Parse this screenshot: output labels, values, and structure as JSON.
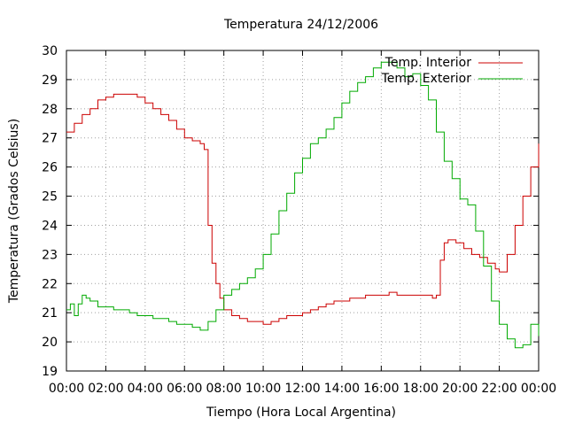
{
  "chart_data": {
    "type": "line",
    "title": "Temperatura 24/12/2006",
    "xlabel": "Tiempo (Hora Local Argentina)",
    "ylabel": "Temperatura (Grados Celsius)",
    "xlim": [
      0,
      24
    ],
    "ylim": [
      19,
      30
    ],
    "x_ticks": [
      "00:00",
      "02:00",
      "04:00",
      "06:00",
      "08:00",
      "10:00",
      "12:00",
      "14:00",
      "16:00",
      "18:00",
      "20:00",
      "22:00",
      "00:00"
    ],
    "y_ticks": [
      "19",
      "20",
      "21",
      "22",
      "23",
      "24",
      "25",
      "26",
      "27",
      "28",
      "29",
      "30"
    ],
    "grid": true,
    "legend_position": "top-right",
    "series": [
      {
        "name": "Temp. Interior",
        "color": "#cc0000",
        "x": [
          0,
          0.4,
          0.8,
          1.2,
          1.6,
          2.0,
          2.4,
          2.8,
          3.2,
          3.6,
          4.0,
          4.4,
          4.8,
          5.2,
          5.6,
          6.0,
          6.4,
          6.8,
          7.0,
          7.2,
          7.4,
          7.6,
          7.8,
          8.0,
          8.4,
          8.8,
          9.2,
          9.6,
          10.0,
          10.4,
          10.8,
          11.2,
          11.6,
          12.0,
          12.4,
          12.8,
          13.2,
          13.6,
          14.0,
          14.4,
          14.8,
          15.2,
          15.6,
          16.0,
          16.4,
          16.8,
          17.2,
          17.6,
          18.0,
          18.4,
          18.6,
          18.8,
          19.0,
          19.2,
          19.4,
          19.8,
          20.2,
          20.6,
          21.0,
          21.4,
          21.8,
          22.0,
          22.4,
          22.8,
          23.2,
          23.6,
          24.0
        ],
        "y": [
          27.2,
          27.5,
          27.8,
          28.0,
          28.3,
          28.4,
          28.5,
          28.5,
          28.5,
          28.4,
          28.2,
          28.0,
          27.8,
          27.6,
          27.3,
          27.0,
          26.9,
          26.8,
          26.6,
          24.0,
          22.7,
          22.0,
          21.5,
          21.1,
          20.9,
          20.8,
          20.7,
          20.7,
          20.6,
          20.7,
          20.8,
          20.9,
          20.9,
          21.0,
          21.1,
          21.2,
          21.3,
          21.4,
          21.4,
          21.5,
          21.5,
          21.6,
          21.6,
          21.6,
          21.7,
          21.6,
          21.6,
          21.6,
          21.6,
          21.6,
          21.5,
          21.6,
          22.8,
          23.4,
          23.5,
          23.4,
          23.2,
          23.0,
          22.9,
          22.7,
          22.5,
          22.4,
          23.0,
          24.0,
          25.0,
          26.0,
          26.8
        ]
      },
      {
        "name": "Temp. Exterior",
        "color": "#00aa00",
        "x": [
          0,
          0.2,
          0.4,
          0.6,
          0.8,
          1.0,
          1.2,
          1.6,
          2.0,
          2.4,
          2.8,
          3.2,
          3.6,
          4.0,
          4.4,
          4.8,
          5.2,
          5.6,
          6.0,
          6.4,
          6.8,
          7.2,
          7.6,
          8.0,
          8.4,
          8.8,
          9.2,
          9.6,
          10.0,
          10.4,
          10.8,
          11.2,
          11.6,
          12.0,
          12.4,
          12.8,
          13.2,
          13.6,
          14.0,
          14.4,
          14.8,
          15.2,
          15.6,
          16.0,
          16.4,
          16.8,
          17.2,
          17.6,
          18.0,
          18.4,
          18.8,
          19.2,
          19.6,
          20.0,
          20.4,
          20.8,
          21.2,
          21.6,
          22.0,
          22.4,
          22.8,
          23.2,
          23.6,
          24.0
        ],
        "y": [
          21.1,
          21.3,
          20.9,
          21.3,
          21.6,
          21.5,
          21.4,
          21.2,
          21.2,
          21.1,
          21.1,
          21.0,
          20.9,
          20.9,
          20.8,
          20.8,
          20.7,
          20.6,
          20.6,
          20.5,
          20.4,
          20.7,
          21.1,
          21.6,
          21.8,
          22.0,
          22.2,
          22.5,
          23.0,
          23.7,
          24.5,
          25.1,
          25.8,
          26.3,
          26.8,
          27.0,
          27.3,
          27.7,
          28.2,
          28.6,
          28.9,
          29.1,
          29.4,
          29.6,
          29.6,
          29.4,
          29.1,
          29.2,
          28.8,
          28.3,
          27.2,
          26.2,
          25.6,
          24.9,
          24.7,
          23.8,
          22.6,
          21.4,
          20.6,
          20.1,
          19.8,
          19.9,
          20.6,
          20.2
        ]
      }
    ]
  }
}
